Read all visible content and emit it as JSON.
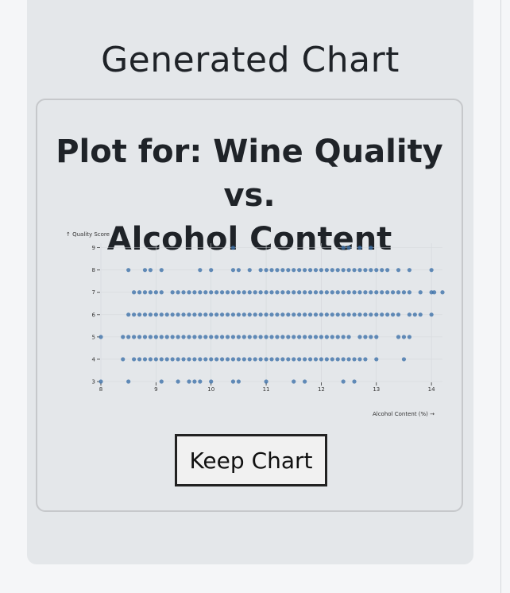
{
  "page": {
    "heading": "Generated Chart",
    "card_title": "Plot for: Wine Quality vs. Alcohol Content",
    "keep_button_label": "Keep Chart"
  },
  "colors": {
    "point": "#3b6fa8",
    "panel": "#e4e7ea",
    "grid": "#d4d7db"
  },
  "chart_data": {
    "type": "scatter",
    "title": "",
    "xlabel": "Alcohol Content (%) →",
    "ylabel": "↑ Quality Score",
    "xlim": [
      8,
      14.2
    ],
    "ylim": [
      3,
      9.2
    ],
    "xticks": [
      8,
      9,
      10,
      11,
      12,
      13,
      14
    ],
    "yticks": [
      3,
      4,
      5,
      6,
      7,
      8,
      9
    ],
    "grid": true,
    "legend": "none",
    "rows": [
      {
        "y": 9,
        "x": [
          10.4,
          12.4,
          12.5,
          12.7,
          12.9
        ]
      },
      {
        "y": 8,
        "x": [
          8.5,
          8.8,
          8.9,
          9.1,
          9.8,
          10.0,
          10.4,
          10.5,
          10.7,
          10.9,
          11.0,
          11.1,
          11.2,
          11.3,
          11.4,
          11.5,
          11.6,
          11.7,
          11.8,
          11.9,
          12.0,
          12.1,
          12.2,
          12.3,
          12.4,
          12.5,
          12.6,
          12.7,
          12.8,
          12.9,
          13.0,
          13.1,
          13.2,
          13.4,
          13.6,
          14.0
        ]
      },
      {
        "y": 7,
        "x": [
          8.6,
          8.7,
          8.8,
          8.9,
          9.0,
          9.1,
          9.3,
          9.4,
          9.5,
          9.6,
          9.7,
          9.8,
          9.9,
          10.0,
          10.1,
          10.2,
          10.3,
          10.4,
          10.5,
          10.6,
          10.7,
          10.8,
          10.9,
          11.0,
          11.1,
          11.2,
          11.3,
          11.4,
          11.5,
          11.6,
          11.7,
          11.8,
          11.9,
          12.0,
          12.1,
          12.2,
          12.3,
          12.4,
          12.5,
          12.6,
          12.7,
          12.8,
          12.9,
          13.0,
          13.1,
          13.2,
          13.3,
          13.4,
          13.5,
          13.6,
          13.8,
          14.0,
          14.05,
          14.2
        ]
      },
      {
        "y": 6,
        "x": [
          8.5,
          8.6,
          8.7,
          8.8,
          8.9,
          9.0,
          9.1,
          9.2,
          9.3,
          9.4,
          9.5,
          9.6,
          9.7,
          9.8,
          9.9,
          10.0,
          10.1,
          10.2,
          10.3,
          10.4,
          10.5,
          10.6,
          10.7,
          10.8,
          10.9,
          11.0,
          11.1,
          11.2,
          11.3,
          11.4,
          11.5,
          11.6,
          11.7,
          11.8,
          11.9,
          12.0,
          12.1,
          12.2,
          12.3,
          12.4,
          12.5,
          12.6,
          12.7,
          12.8,
          12.9,
          13.0,
          13.1,
          13.2,
          13.3,
          13.4,
          13.6,
          13.7,
          13.8,
          14.0
        ]
      },
      {
        "y": 5,
        "x": [
          8.0,
          8.4,
          8.5,
          8.6,
          8.7,
          8.8,
          8.9,
          9.0,
          9.1,
          9.2,
          9.3,
          9.4,
          9.5,
          9.6,
          9.7,
          9.8,
          9.9,
          10.0,
          10.1,
          10.2,
          10.3,
          10.4,
          10.5,
          10.6,
          10.7,
          10.8,
          10.9,
          11.0,
          11.1,
          11.2,
          11.3,
          11.4,
          11.5,
          11.6,
          11.7,
          11.8,
          11.9,
          12.0,
          12.1,
          12.2,
          12.3,
          12.4,
          12.5,
          12.7,
          12.8,
          12.9,
          13.0,
          13.4,
          13.5,
          13.6
        ]
      },
      {
        "y": 4,
        "x": [
          8.4,
          8.6,
          8.7,
          8.8,
          8.9,
          9.0,
          9.1,
          9.2,
          9.3,
          9.4,
          9.5,
          9.6,
          9.7,
          9.8,
          9.9,
          10.0,
          10.1,
          10.2,
          10.3,
          10.4,
          10.5,
          10.6,
          10.7,
          10.8,
          10.9,
          11.0,
          11.1,
          11.2,
          11.3,
          11.4,
          11.5,
          11.6,
          11.7,
          11.8,
          11.9,
          12.0,
          12.1,
          12.2,
          12.3,
          12.4,
          12.5,
          12.6,
          12.7,
          12.8,
          13.0,
          13.5
        ]
      },
      {
        "y": 3,
        "x": [
          8.0,
          8.5,
          9.1,
          9.4,
          9.6,
          9.7,
          9.8,
          10.0,
          10.4,
          10.5,
          11.0,
          11.5,
          11.7,
          12.4,
          12.6
        ]
      }
    ]
  }
}
